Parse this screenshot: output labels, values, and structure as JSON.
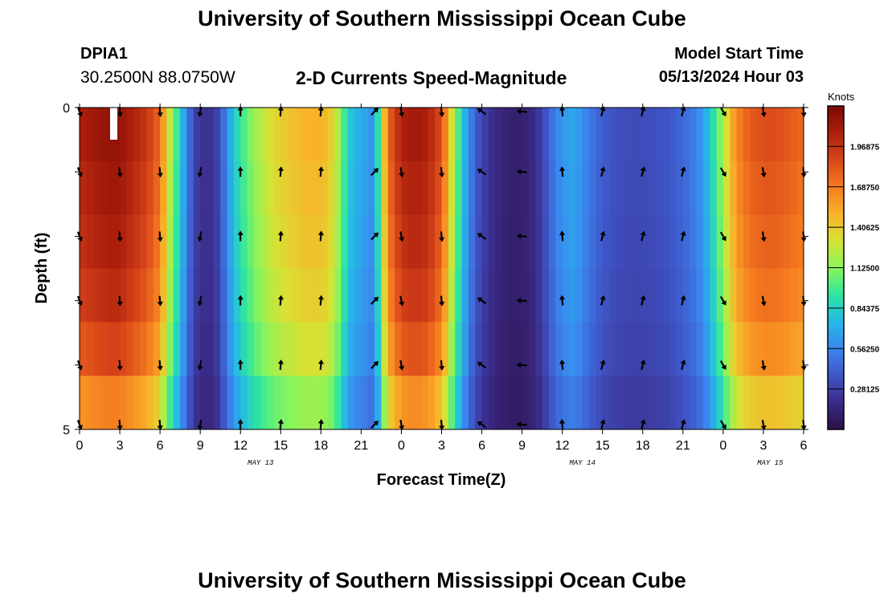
{
  "header": {
    "title": "University of Southern Mississippi Ocean Cube",
    "station_id": "DPIA1",
    "coords": "30.2500N  88.0750W",
    "chart_title": "2-D Currents Speed-Magnitude",
    "start_label": "Model Start Time",
    "start_value": "05/13/2024 Hour 03"
  },
  "footer": {
    "title": "University of Southern Mississippi Ocean Cube"
  },
  "colors": {
    "scale": [
      "#2b1148",
      "#3b2a86",
      "#3f56c8",
      "#3b86ef",
      "#25b9e8",
      "#2ee6a0",
      "#8af55a",
      "#d8e234",
      "#f9b22a",
      "#f57b1f",
      "#d9461a",
      "#ab1e0d",
      "#7a0904"
    ]
  },
  "chart_data": {
    "type": "heatmap",
    "title": "2-D Currents Speed-Magnitude",
    "xlabel": "Forecast Time(Z)",
    "ylabel": "Depth (ft)",
    "colorbar_label": "Knots",
    "colorbar_ticks": [
      "1.96875",
      "1.68750",
      "1.40625",
      "1.12500",
      "0.84375",
      "0.56250",
      "0.28125"
    ],
    "colorbar_values": [
      1.96875,
      1.6875,
      1.40625,
      1.125,
      0.84375,
      0.5625,
      0.28125
    ],
    "vmin": 0,
    "vmax": 2.25,
    "x_tick_labels": [
      "0",
      "3",
      "6",
      "9",
      "12",
      "15",
      "18",
      "21",
      "0",
      "3",
      "6",
      "9",
      "12",
      "15",
      "18",
      "21",
      "0",
      "3",
      "6"
    ],
    "y_tick_labels": [
      "0",
      "5"
    ],
    "ylim": [
      0,
      5
    ],
    "date_labels": [
      {
        "label": "MAY 13",
        "hour": 13.5
      },
      {
        "label": "MAY 14",
        "hour": 37.5
      },
      {
        "label": "MAY 15",
        "hour": 51.5
      }
    ],
    "hours_range": [
      0,
      54
    ],
    "speed_profile": [
      [
        0,
        2.05
      ],
      [
        1,
        2.1
      ],
      [
        2,
        2.15
      ],
      [
        3,
        2.15
      ],
      [
        4,
        2.05
      ],
      [
        5,
        1.95
      ],
      [
        6,
        1.75
      ],
      [
        6.5,
        1.4
      ],
      [
        7,
        1.1
      ],
      [
        7.5,
        0.85
      ],
      [
        8,
        0.55
      ],
      [
        8.5,
        0.32
      ],
      [
        9,
        0.22
      ],
      [
        10,
        0.22
      ],
      [
        10.5,
        0.35
      ],
      [
        11,
        0.6
      ],
      [
        11.5,
        0.8
      ],
      [
        12,
        0.95
      ],
      [
        13,
        1.15
      ],
      [
        14,
        1.3
      ],
      [
        15,
        1.4
      ],
      [
        16,
        1.45
      ],
      [
        17,
        1.5
      ],
      [
        18,
        1.5
      ],
      [
        18.5,
        1.45
      ],
      [
        19,
        1.35
      ],
      [
        19.5,
        1.1
      ],
      [
        20,
        0.85
      ],
      [
        20.5,
        0.75
      ],
      [
        21,
        0.7
      ],
      [
        21.5,
        0.65
      ],
      [
        22,
        0.6
      ],
      [
        22.5,
        1.2
      ],
      [
        23,
        1.75
      ],
      [
        24,
        2.05
      ],
      [
        25,
        2.1
      ],
      [
        26,
        2.05
      ],
      [
        27,
        1.85
      ],
      [
        27.5,
        1.5
      ],
      [
        28,
        1.15
      ],
      [
        28.5,
        0.85
      ],
      [
        29,
        0.6
      ],
      [
        29.5,
        0.42
      ],
      [
        30,
        0.3
      ],
      [
        31,
        0.18
      ],
      [
        32,
        0.12
      ],
      [
        33,
        0.12
      ],
      [
        34,
        0.2
      ],
      [
        34.5,
        0.3
      ],
      [
        35,
        0.42
      ],
      [
        35.5,
        0.55
      ],
      [
        36,
        0.62
      ],
      [
        36.5,
        0.68
      ],
      [
        37,
        0.68
      ],
      [
        37.5,
        0.6
      ],
      [
        38,
        0.52
      ],
      [
        39,
        0.4
      ],
      [
        40,
        0.35
      ],
      [
        41,
        0.33
      ],
      [
        42,
        0.33
      ],
      [
        43,
        0.35
      ],
      [
        44,
        0.38
      ],
      [
        45,
        0.45
      ],
      [
        45.5,
        0.5
      ],
      [
        46,
        0.55
      ],
      [
        46.5,
        0.65
      ],
      [
        47,
        0.8
      ],
      [
        47.5,
        1.0
      ],
      [
        48,
        1.2
      ],
      [
        48.5,
        1.45
      ],
      [
        49,
        1.65
      ],
      [
        50,
        1.8
      ],
      [
        51,
        1.85
      ],
      [
        52,
        1.85
      ],
      [
        53,
        1.8
      ],
      [
        54,
        1.75
      ]
    ],
    "depth_factor": [
      1.0,
      0.98,
      0.96,
      0.93,
      0.88,
      0.78
    ],
    "arrow_hours": [
      0,
      3,
      6,
      9,
      12,
      15,
      18,
      22,
      24,
      27,
      30,
      33,
      36,
      39,
      42,
      45,
      48,
      51,
      54
    ],
    "arrow_depths": [
      0,
      1,
      2,
      3,
      4,
      5
    ],
    "arrow_direction_deg": [
      160,
      175,
      175,
      190,
      0,
      5,
      5,
      45,
      170,
      175,
      305,
      275,
      355,
      15,
      15,
      15,
      150,
      170,
      175
    ]
  }
}
